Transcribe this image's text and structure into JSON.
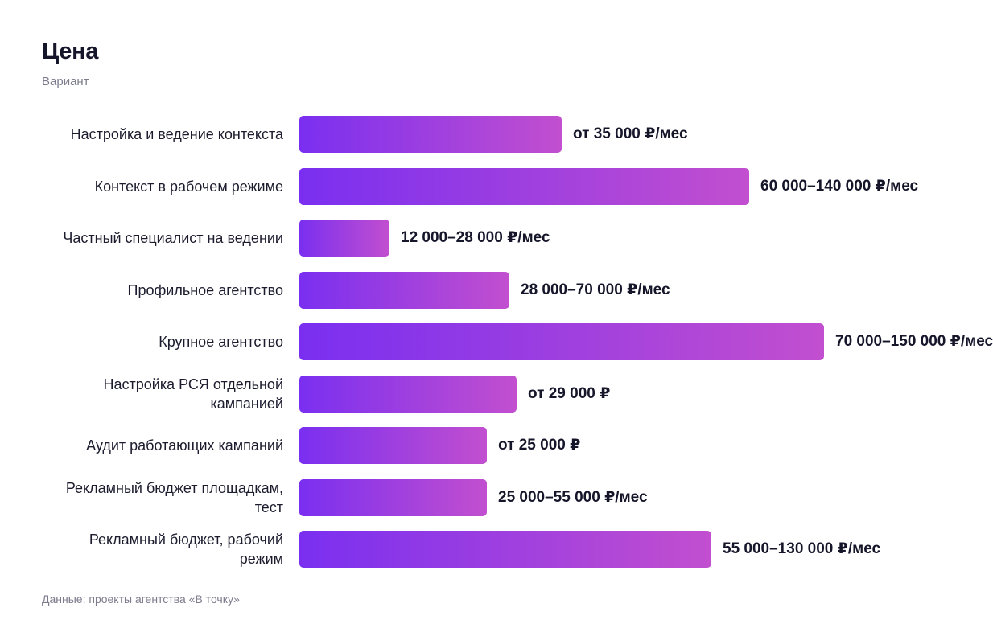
{
  "chart_data": {
    "type": "bar",
    "orientation": "horizontal",
    "title": "Цена",
    "subtitle": "Вариант",
    "categories": [
      "Настройка и ведение контекста",
      "Контекст в рабочем режиме",
      "Частный специалист на ведении",
      "Профильное агентство",
      "Крупное агентство",
      "Настройка РСЯ отдельной кампанией",
      "Аудит работающих кампаний",
      "Рекламный бюджет площадкам, тест",
      "Рекламный бюджет, рабочий режим"
    ],
    "values": [
      35000,
      60000,
      12000,
      28000,
      70000,
      29000,
      25000,
      25000,
      55000
    ],
    "value_labels": [
      "от 35 000 ₽/мес",
      "60 000–140 000 ₽/мес",
      "12 000–28 000 ₽/мес",
      "28 000–70 000 ₽/мес",
      "70 000–150 000 ₽/мес",
      "от 29 000 ₽",
      "от 25 000 ₽",
      "25 000–55 000 ₽/мес",
      "55 000–130 000 ₽/мес"
    ],
    "xlim": [
      0,
      70000
    ],
    "grid": false,
    "colors": {
      "bar_gradient_start": "#7a2ff0",
      "bar_gradient_end": "#c24fcf",
      "text": "#16162b",
      "muted": "#7c7c8c"
    }
  },
  "footnote": "Данные: проекты агентства «В точку»"
}
